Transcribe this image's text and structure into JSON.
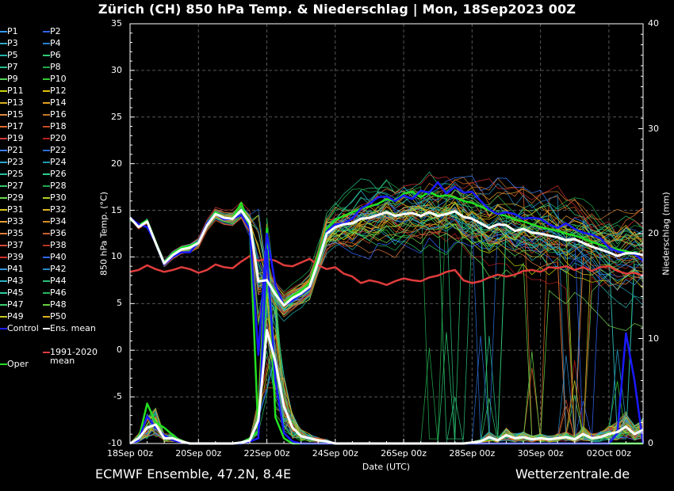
{
  "title": "Zürich  (CH)  850 hPa Temp. & Niederschlag | Mon, 18Sep2023 00Z",
  "footer": {
    "left": "ECMWF Ensemble, 47.2N, 8.4E",
    "right": "Wetterzentrale.de"
  },
  "legend": [
    {
      "label": "P1",
      "color": "#3399ff"
    },
    {
      "label": "P2",
      "color": "#3366ff"
    },
    {
      "label": "P3",
      "color": "#2fa8c8"
    },
    {
      "label": "P4",
      "color": "#2a7fd0"
    },
    {
      "label": "P5",
      "color": "#20b2aa"
    },
    {
      "label": "P6",
      "color": "#2ecc71"
    },
    {
      "label": "P7",
      "color": "#24c08a"
    },
    {
      "label": "P8",
      "color": "#1fa84a"
    },
    {
      "label": "P9",
      "color": "#55d655"
    },
    {
      "label": "P10",
      "color": "#33cc33"
    },
    {
      "label": "P11",
      "color": "#c8d400"
    },
    {
      "label": "P12",
      "color": "#e6c200"
    },
    {
      "label": "P13",
      "color": "#d9b020"
    },
    {
      "label": "P14",
      "color": "#e6a020"
    },
    {
      "label": "P15",
      "color": "#e08a3c"
    },
    {
      "label": "P16",
      "color": "#c8782a"
    },
    {
      "label": "P17",
      "color": "#e06a2a"
    },
    {
      "label": "P18",
      "color": "#c84a20"
    },
    {
      "label": "P19",
      "color": "#d03a3a"
    },
    {
      "label": "P20",
      "color": "#b81e1e"
    },
    {
      "label": "P21",
      "color": "#3a7fff"
    },
    {
      "label": "P22",
      "color": "#2a6fd8"
    },
    {
      "label": "P23",
      "color": "#27a4d0"
    },
    {
      "label": "P24",
      "color": "#1f9ab0"
    },
    {
      "label": "P25",
      "color": "#20c0a0"
    },
    {
      "label": "P26",
      "color": "#2ad08a"
    },
    {
      "label": "P27",
      "color": "#35c86a"
    },
    {
      "label": "P28",
      "color": "#22a84c"
    },
    {
      "label": "P29",
      "color": "#6ad84a"
    },
    {
      "label": "P30",
      "color": "#b6d020"
    },
    {
      "label": "P31",
      "color": "#d8c818"
    },
    {
      "label": "P32",
      "color": "#e0b424"
    },
    {
      "label": "P33",
      "color": "#e6a030"
    },
    {
      "label": "P34",
      "color": "#d88c28"
    },
    {
      "label": "P35",
      "color": "#e07a3a"
    },
    {
      "label": "P36",
      "color": "#c8602a"
    },
    {
      "label": "P37",
      "color": "#d84a3a"
    },
    {
      "label": "P38",
      "color": "#b8341e"
    },
    {
      "label": "P39",
      "color": "#d03030"
    },
    {
      "label": "P40",
      "color": "#3366ff"
    },
    {
      "label": "P41",
      "color": "#2f96e0"
    },
    {
      "label": "P42",
      "color": "#2a8ac8"
    },
    {
      "label": "P43",
      "color": "#26b0c0"
    },
    {
      "label": "P44",
      "color": "#2ac07a"
    },
    {
      "label": "P45",
      "color": "#2ccca0"
    },
    {
      "label": "P46",
      "color": "#26b85a"
    },
    {
      "label": "P47",
      "color": "#3cd070"
    },
    {
      "label": "P48",
      "color": "#6ad040"
    },
    {
      "label": "P49",
      "color": "#c8c820"
    },
    {
      "label": "P50",
      "color": "#e0b020"
    },
    {
      "label": "Control",
      "color": "#1a1aff"
    },
    {
      "label": "Ens. mean",
      "color": "#ffffff"
    },
    {
      "label": "1991-2020\nmean",
      "color": "#e03c3c"
    },
    {
      "label": "Oper",
      "color": "#22e022"
    }
  ],
  "axes": {
    "y_left_label": "850 hPa Temp. (°C)",
    "y_right_label": "Niederschlag (mm)",
    "x_label": "Date (UTC)",
    "y_left_ticks": [
      "35",
      "30",
      "25",
      "20",
      "15",
      "10",
      "5",
      "0",
      "-5",
      "-10"
    ],
    "y_right_ticks": [
      "40",
      "30",
      "20",
      "10",
      "0"
    ],
    "x_ticks": [
      "18Sep 00z",
      "20Sep 00z",
      "22Sep 00z",
      "24Sep 00z",
      "26Sep 00z",
      "28Sep 00z",
      "30Sep 00z",
      "02Oct 00z"
    ]
  },
  "chart_data": {
    "type": "line",
    "title": "Zürich  (CH)  850 hPa Temp. & Niederschlag | Mon, 18Sep2023 00Z",
    "xlabel": "Date (UTC)",
    "ylabel": "850 hPa Temp. (°C)",
    "y2label": "Niederschlag (mm)",
    "ylim": [
      -10,
      35
    ],
    "y2lim": [
      0,
      40
    ],
    "grid": true,
    "x": [
      0,
      6,
      12,
      18,
      24,
      30,
      36,
      42,
      48,
      54,
      60,
      66,
      72,
      78,
      84,
      90,
      96,
      102,
      108,
      114,
      120,
      126,
      132,
      138,
      144,
      150,
      156,
      162,
      168,
      174,
      180,
      186,
      192,
      198,
      204,
      210,
      216,
      222,
      228,
      234,
      240,
      246,
      252,
      258,
      264,
      270,
      276,
      282,
      288,
      294,
      300,
      306,
      312,
      318,
      324,
      330,
      336,
      342,
      348,
      354,
      360
    ],
    "x_unit": "hours after 18Sep2023 00Z",
    "series": [
      {
        "name": "Ens. mean",
        "axis": "temp",
        "values": [
          14.2,
          13.2,
          13.8,
          11.5,
          9.3,
          10.2,
          10.8,
          11.0,
          11.5,
          13.4,
          14.6,
          14.2,
          14.1,
          15.0,
          13.7,
          7.4,
          7.5,
          6.0,
          4.8,
          5.6,
          6.1,
          6.8,
          9.5,
          12.5,
          13.2,
          13.5,
          13.6,
          14.1,
          14.2,
          14.5,
          14.8,
          14.4,
          14.6,
          14.7,
          14.4,
          14.8,
          14.4,
          14.6,
          14.9,
          14.3,
          14.1,
          13.6,
          13.1,
          13.5,
          13.4,
          12.8,
          13.0,
          12.6,
          12.5,
          12.3,
          12.1,
          11.8,
          11.9,
          11.5,
          11.1,
          10.8,
          10.5,
          10.1,
          10.4,
          10.4,
          10.2
        ]
      },
      {
        "name": "Control",
        "axis": "temp",
        "values": [
          14.2,
          13.5,
          13.2,
          11.5,
          9.2,
          10.0,
          10.5,
          10.5,
          11.6,
          13.6,
          14.6,
          14.0,
          14.1,
          14.5,
          13.0,
          -0.5,
          12.5,
          7.0,
          4.8,
          5.3,
          6.0,
          6.6,
          9.6,
          12.7,
          13.5,
          13.6,
          14.1,
          15.2,
          15.7,
          16.4,
          16.5,
          16.0,
          16.6,
          16.2,
          17.1,
          16.9,
          18.0,
          16.8,
          17.5,
          16.9,
          17.0,
          16.0,
          15.1,
          14.6,
          14.8,
          14.6,
          14.1,
          14.2,
          14.1,
          13.5,
          13.1,
          13.6,
          13.0,
          12.6,
          12.4,
          12.0,
          11.0,
          10.6,
          10.4,
          10.3,
          9.6
        ]
      },
      {
        "name": "Oper",
        "axis": "temp",
        "values": [
          14.0,
          13.4,
          13.9,
          11.6,
          9.4,
          10.4,
          11.0,
          11.2,
          11.6,
          13.6,
          14.8,
          14.1,
          14.2,
          15.8,
          13.2,
          -9.0,
          7.5,
          6.2,
          5.0,
          5.8,
          6.4,
          7.2,
          10.2,
          13.0,
          14.0,
          14.4,
          14.8,
          15.2,
          15.4,
          15.7,
          16.2,
          16.0,
          16.8,
          17.0,
          16.4,
          17.0,
          16.5,
          16.6,
          16.4,
          16.0,
          15.8,
          15.4,
          15.0,
          14.6,
          14.4,
          14.0,
          13.8,
          13.5,
          13.2,
          13.0,
          12.8,
          12.5,
          12.3,
          12.0,
          11.6,
          11.3,
          11.0,
          10.8,
          10.6,
          10.4,
          10.2
        ]
      },
      {
        "name": "1991-2020\nmean",
        "axis": "temp",
        "values": [
          8.4,
          8.6,
          9.1,
          8.7,
          8.4,
          8.6,
          8.9,
          8.7,
          8.3,
          8.6,
          9.2,
          8.9,
          8.8,
          9.5,
          10.1,
          9.6,
          9.8,
          9.6,
          9.1,
          9.0,
          9.4,
          9.8,
          9.1,
          8.7,
          8.9,
          8.2,
          7.9,
          7.2,
          7.5,
          7.3,
          7.0,
          7.4,
          7.7,
          7.5,
          7.4,
          7.8,
          8.0,
          8.4,
          8.6,
          7.5,
          7.2,
          7.4,
          7.8,
          8.1,
          7.9,
          8.1,
          8.5,
          8.6,
          8.4,
          8.9,
          8.8,
          9.0,
          8.6,
          8.9,
          8.5,
          8.9,
          9.0,
          8.5,
          8.2,
          8.3,
          8.0
        ]
      },
      {
        "name": "Ens. mean",
        "axis": "precip",
        "values": [
          0,
          0.5,
          1.5,
          1.8,
          0.5,
          0.5,
          0.2,
          0,
          0,
          0,
          0,
          0,
          0,
          0.1,
          0.3,
          2.2,
          10.8,
          7.8,
          3.5,
          1.5,
          0.7,
          0.5,
          0.3,
          0.2,
          0,
          0,
          0,
          0,
          0,
          0,
          0,
          0,
          0,
          0,
          0,
          0,
          0,
          0,
          0,
          0,
          0.1,
          0.2,
          0.6,
          0.3,
          0.8,
          0.5,
          0.6,
          0.4,
          0.5,
          0.4,
          0.5,
          0.6,
          0.4,
          0.9,
          0.5,
          0.6,
          0.9,
          1.1,
          1.6,
          0.9,
          1.3
        ]
      },
      {
        "name": "Control",
        "axis": "precip",
        "values": [
          0,
          0.3,
          2.6,
          1.5,
          0.8,
          0.3,
          0.1,
          0,
          0,
          0,
          0,
          0,
          0,
          0,
          0.2,
          0.5,
          18.5,
          6.0,
          1.0,
          0.2,
          0,
          0,
          0,
          0,
          0,
          0,
          0,
          0,
          0,
          0,
          0,
          0,
          0,
          0,
          0,
          0,
          0,
          0,
          0,
          0,
          0,
          0,
          0,
          0,
          0,
          0,
          0,
          0,
          0,
          0,
          0,
          0,
          0,
          0,
          0,
          0,
          0,
          1.0,
          10.5,
          6.0,
          0
        ]
      },
      {
        "name": "Oper",
        "axis": "precip",
        "values": [
          0,
          0.4,
          3.8,
          2.0,
          1.5,
          0.8,
          0.1,
          0,
          0,
          0,
          0,
          0,
          0,
          0,
          0.5,
          1.2,
          20.5,
          2.5,
          0.5,
          0,
          0,
          0,
          0,
          0,
          0,
          0,
          0,
          0,
          0,
          0,
          0,
          0,
          0,
          0,
          0,
          0,
          0,
          0,
          0,
          0,
          0,
          0,
          0,
          0,
          0,
          0,
          0,
          0,
          0,
          0,
          0,
          0,
          0,
          0,
          0,
          0,
          0,
          0,
          0,
          0,
          0
        ]
      }
    ]
  }
}
